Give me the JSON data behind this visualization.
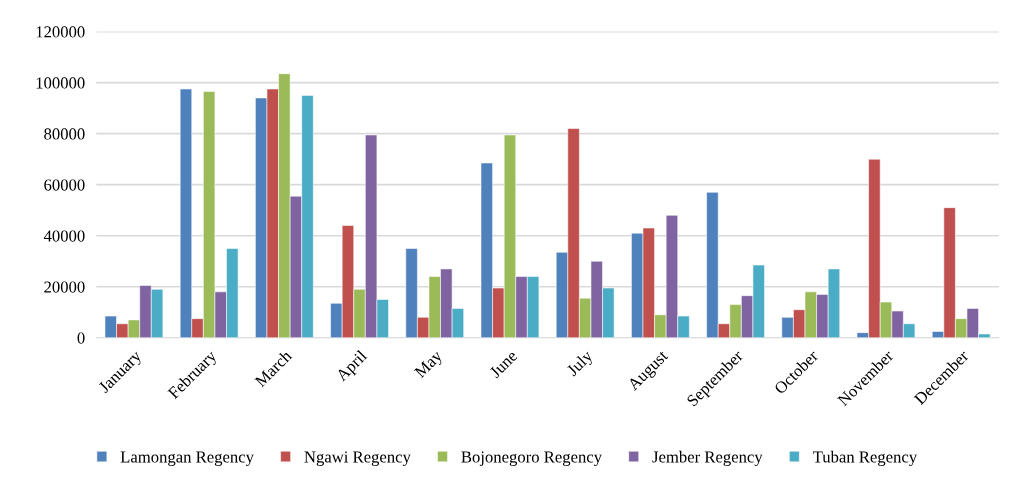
{
  "chart_data": {
    "type": "bar",
    "categories": [
      "January",
      "February",
      "March",
      "April",
      "May",
      "June",
      "July",
      "August",
      "September",
      "October",
      "November",
      "December"
    ],
    "series": [
      {
        "name": "Lamongan Regency",
        "color": "#4f81bd",
        "values": [
          8500,
          97500,
          94000,
          13500,
          35000,
          68500,
          33500,
          41000,
          57000,
          8000,
          2000,
          2500
        ]
      },
      {
        "name": "Ngawi Regency",
        "color": "#c0504d",
        "values": [
          5500,
          7500,
          97500,
          44000,
          8000,
          19500,
          82000,
          43000,
          5500,
          11000,
          70000,
          51000
        ]
      },
      {
        "name": "Bojonegoro Regency",
        "color": "#9bbb59",
        "values": [
          7000,
          96500,
          103500,
          19000,
          24000,
          79500,
          15500,
          9000,
          13000,
          18000,
          14000,
          7500
        ]
      },
      {
        "name": "Jember Regency",
        "color": "#8064a2",
        "values": [
          20500,
          18000,
          55500,
          79500,
          27000,
          24000,
          30000,
          48000,
          16500,
          17000,
          10500,
          11500
        ]
      },
      {
        "name": "Tuban Regency",
        "color": "#4bacc6",
        "values": [
          19000,
          35000,
          95000,
          15000,
          11500,
          24000,
          19500,
          8500,
          28500,
          27000,
          5500,
          1500
        ]
      }
    ],
    "ylim": [
      0,
      120000
    ],
    "yticks": [
      0,
      20000,
      40000,
      60000,
      80000,
      100000,
      120000
    ],
    "grid": "y",
    "legend": "bottom"
  }
}
